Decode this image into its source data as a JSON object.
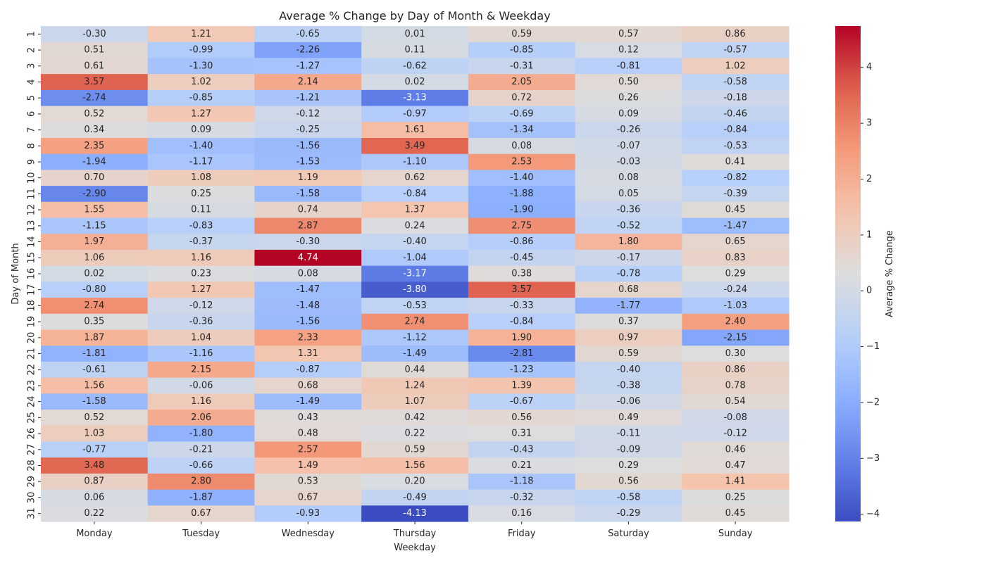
{
  "chart_data": {
    "type": "heatmap",
    "title": "Average % Change by Day of Month & Weekday",
    "xlabel": "Weekday",
    "ylabel": "Day of Month",
    "colorbar_label": "Average % Change",
    "colormap": "coolwarm",
    "vmin": -4.13,
    "vmax": 4.74,
    "colorbar_ticks": [
      "−4",
      "−3",
      "−2",
      "−1",
      "0",
      "1",
      "2",
      "3",
      "4"
    ],
    "colorbar_tick_values": [
      -4,
      -3,
      -2,
      -1,
      0,
      1,
      2,
      3,
      4
    ],
    "columns": [
      "Monday",
      "Tuesday",
      "Wednesday",
      "Thursday",
      "Friday",
      "Saturday",
      "Sunday"
    ],
    "rows": [
      "1",
      "2",
      "3",
      "4",
      "5",
      "6",
      "7",
      "8",
      "9",
      "10",
      "11",
      "12",
      "13",
      "14",
      "15",
      "16",
      "17",
      "18",
      "19",
      "20",
      "21",
      "22",
      "23",
      "24",
      "25",
      "26",
      "27",
      "28",
      "29",
      "30",
      "31"
    ],
    "values": [
      [
        -0.3,
        1.21,
        -0.65,
        0.01,
        0.59,
        0.57,
        0.86
      ],
      [
        0.51,
        -0.99,
        -2.26,
        0.11,
        -0.85,
        0.12,
        -0.57
      ],
      [
        0.61,
        -1.3,
        -1.27,
        -0.62,
        -0.31,
        -0.81,
        1.02
      ],
      [
        3.57,
        1.02,
        2.14,
        0.02,
        2.05,
        0.5,
        -0.58
      ],
      [
        -2.74,
        -0.85,
        -1.21,
        -3.13,
        0.72,
        0.26,
        -0.18
      ],
      [
        0.52,
        1.27,
        -0.12,
        -0.97,
        -0.69,
        0.09,
        -0.46
      ],
      [
        0.34,
        0.09,
        -0.25,
        1.61,
        -1.34,
        -0.26,
        -0.84
      ],
      [
        2.35,
        -1.4,
        -1.56,
        3.49,
        0.08,
        -0.07,
        -0.53
      ],
      [
        -1.94,
        -1.17,
        -1.53,
        -1.1,
        2.53,
        -0.03,
        0.41
      ],
      [
        0.7,
        1.08,
        1.19,
        0.62,
        -1.4,
        0.08,
        -0.82
      ],
      [
        -2.9,
        0.25,
        -1.58,
        -0.84,
        -1.88,
        0.05,
        -0.39
      ],
      [
        1.55,
        0.11,
        0.74,
        1.37,
        -1.9,
        -0.36,
        0.45
      ],
      [
        -1.15,
        -0.83,
        2.87,
        0.24,
        2.75,
        -0.52,
        -1.47
      ],
      [
        1.97,
        -0.37,
        -0.3,
        -0.4,
        -0.86,
        1.8,
        0.65
      ],
      [
        1.06,
        1.16,
        4.74,
        -1.04,
        -0.45,
        -0.17,
        0.83
      ],
      [
        0.02,
        0.23,
        0.08,
        -3.17,
        0.38,
        -0.78,
        0.29
      ],
      [
        -0.8,
        1.27,
        -1.47,
        -3.8,
        3.57,
        0.68,
        -0.24
      ],
      [
        2.74,
        -0.12,
        -1.48,
        -0.53,
        -0.33,
        -1.77,
        -1.03
      ],
      [
        0.35,
        -0.36,
        -1.56,
        2.74,
        -0.84,
        0.37,
        2.4
      ],
      [
        1.87,
        1.04,
        2.33,
        -1.12,
        1.9,
        0.97,
        -2.15
      ],
      [
        -1.81,
        -1.16,
        1.31,
        -1.49,
        -2.81,
        0.59,
        0.3
      ],
      [
        -0.61,
        2.15,
        -0.87,
        0.44,
        -1.23,
        -0.4,
        0.86
      ],
      [
        1.56,
        -0.06,
        0.68,
        1.24,
        1.39,
        -0.38,
        0.78
      ],
      [
        -1.58,
        1.16,
        -1.49,
        1.07,
        -0.67,
        -0.06,
        0.54
      ],
      [
        0.52,
        2.06,
        0.43,
        0.42,
        0.56,
        0.49,
        -0.08
      ],
      [
        1.03,
        -1.8,
        0.48,
        0.22,
        0.31,
        -0.11,
        -0.12
      ],
      [
        -0.77,
        -0.21,
        2.57,
        0.59,
        -0.43,
        -0.09,
        0.46
      ],
      [
        3.48,
        -0.66,
        1.49,
        1.56,
        0.21,
        0.29,
        0.47
      ],
      [
        0.87,
        2.8,
        0.53,
        0.2,
        -1.18,
        0.56,
        1.41
      ],
      [
        0.06,
        -1.87,
        0.67,
        -0.49,
        -0.32,
        -0.58,
        0.25
      ],
      [
        0.22,
        0.67,
        -0.93,
        -4.13,
        0.16,
        -0.29,
        0.45
      ]
    ]
  }
}
